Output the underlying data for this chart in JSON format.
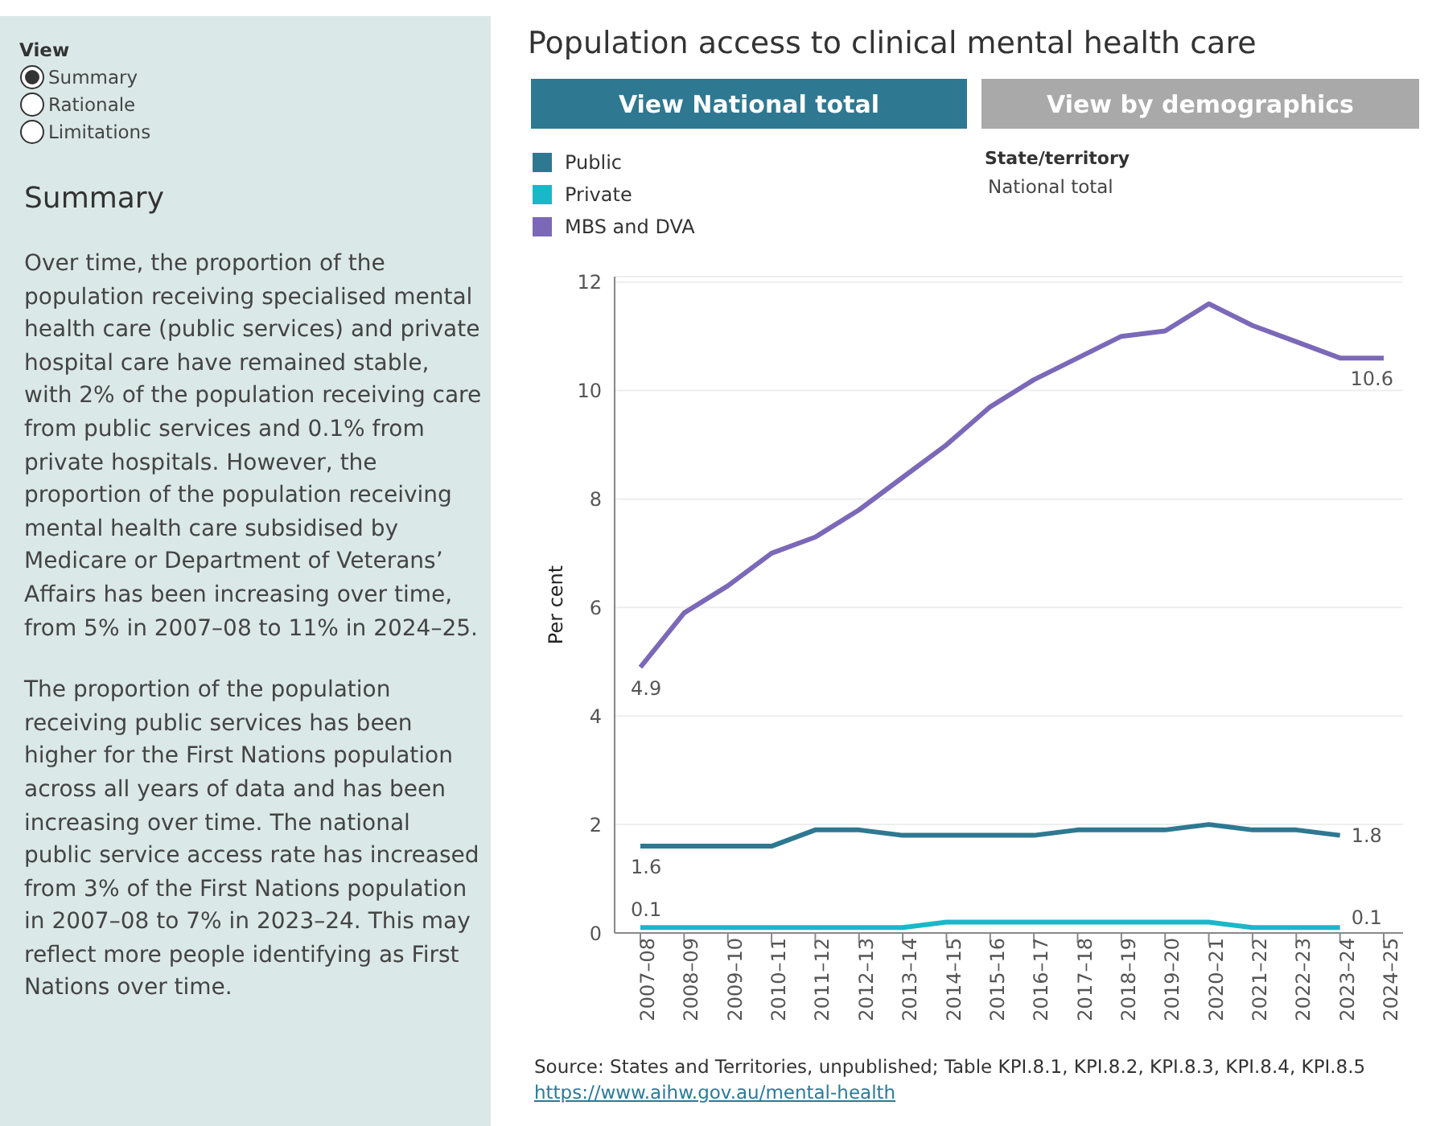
{
  "chart_data": {
    "type": "line",
    "title": "Population access to clinical mental health care",
    "ylabel": "Per cent",
    "categories": [
      "2007–08",
      "2008–09",
      "2009–10",
      "2010–11",
      "2011–12",
      "2012–13",
      "2013–14",
      "2014–15",
      "2015–16",
      "2016–17",
      "2017–18",
      "2018–19",
      "2019–20",
      "2020–21",
      "2021–22",
      "2022–23",
      "2023–24",
      "2024–25"
    ],
    "series": [
      {
        "name": "Public",
        "color": "#2e7891",
        "values": [
          1.6,
          1.6,
          1.6,
          1.6,
          1.9,
          1.9,
          1.8,
          1.8,
          1.8,
          1.8,
          1.9,
          1.9,
          1.9,
          2.0,
          1.9,
          1.9,
          1.8,
          null
        ],
        "value_labels": [
          "1.6",
          null,
          null,
          null,
          null,
          null,
          null,
          null,
          null,
          null,
          null,
          null,
          null,
          null,
          null,
          null,
          "1.8",
          null
        ]
      },
      {
        "name": "Private",
        "color": "#19b8c8",
        "values": [
          0.1,
          0.1,
          0.1,
          0.1,
          0.1,
          0.1,
          0.1,
          0.2,
          0.2,
          0.2,
          0.2,
          0.2,
          0.2,
          0.2,
          0.1,
          0.1,
          0.1,
          null
        ],
        "value_labels": [
          "0.1",
          null,
          null,
          null,
          null,
          null,
          null,
          null,
          null,
          null,
          null,
          null,
          null,
          null,
          null,
          null,
          "0.1",
          null
        ]
      },
      {
        "name": "MBS and DVA",
        "color": "#7b68b8",
        "values": [
          4.9,
          5.9,
          6.4,
          7.0,
          7.3,
          7.8,
          8.4,
          9.0,
          9.7,
          10.2,
          10.6,
          11.0,
          11.1,
          11.6,
          11.2,
          10.9,
          10.6,
          10.6
        ],
        "value_labels": [
          "4.9",
          null,
          null,
          null,
          null,
          null,
          null,
          null,
          null,
          null,
          null,
          null,
          null,
          null,
          null,
          null,
          null,
          "10.6"
        ]
      }
    ],
    "ylim": [
      0,
      12.1
    ],
    "yticks": [
      0,
      2,
      4,
      6,
      8,
      10,
      12
    ],
    "grid": "y",
    "legend": "top left",
    "annotations": [
      "View",
      "Summary",
      "Rationale",
      "Limitations",
      "Summary",
      "Over time, the proportion of the population receiving specialised mental health care (public services) and private hospital care have remained stable, with 2% of the population receiving care from public services and 0.1% from private hospitals. However, the proportion of the population receiving mental health care subsidised by Medicare or Department of Veterans’ Affairs has been increasing over time, from 5% in 2007–08 to 11% in 2024–25.",
      "The proportion of the population receiving public services has been higher for the First Nations population across all years of data and has been increasing over time. The national public service access rate has increased from 3% of the First Nations population in 2007–08 to 7% in 2023–24. This may reflect  more people identifying as First Nations over time.",
      "View National total",
      "View by demographics",
      "State/territory",
      "National total",
      "Source: States and Territories, unpublished; Table KPI.8.1, KPI.8.2, KPI.8.3, KPI.8.4, KPI.8.5",
      "https://www.aihw.gov.au/mental-health"
    ]
  }
}
